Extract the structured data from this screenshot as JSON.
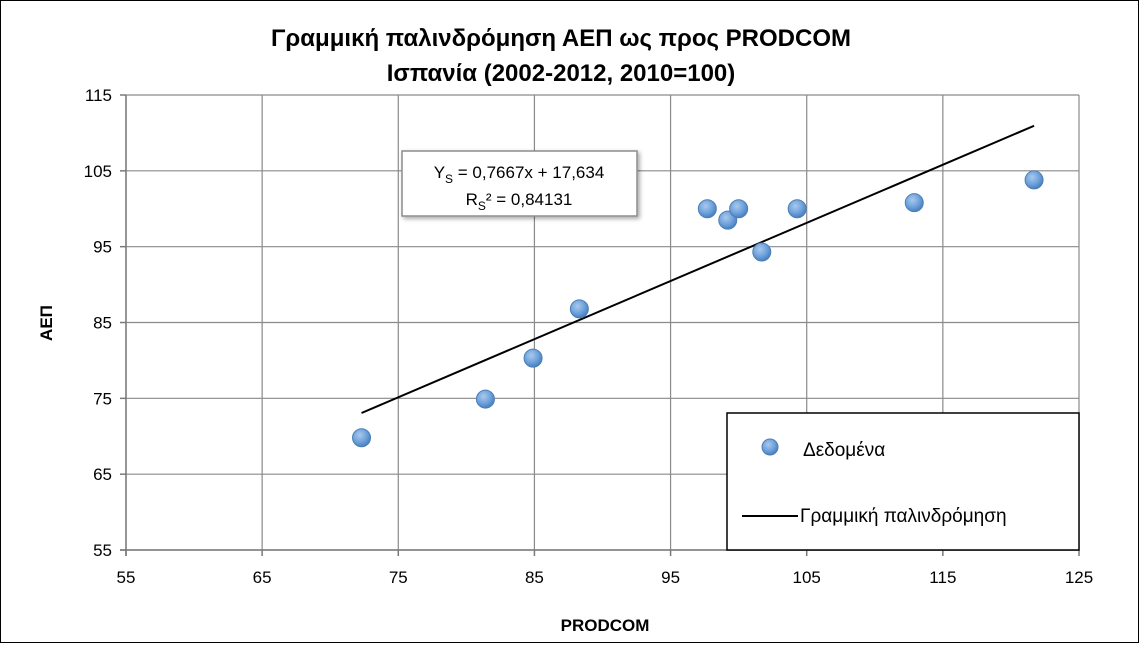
{
  "chart_data": {
    "type": "scatter",
    "title": "Γραμμική παλινδρόμηση ΑΕΠ ως προς PRODCOM",
    "subtitle": "Ισπανία (2002-2012, 2010=100)",
    "xlabel": "PRODCOM",
    "ylabel": "ΑΕΠ",
    "xlim": [
      55,
      125
    ],
    "ylim": [
      55,
      115
    ],
    "xticks": [
      55,
      65,
      75,
      85,
      95,
      105,
      115,
      125
    ],
    "yticks": [
      55,
      65,
      75,
      85,
      95,
      105,
      115
    ],
    "grid": true,
    "legend_position": "bottom-right",
    "series": [
      {
        "name": "Δεδομένα",
        "kind": "scatter",
        "color": "#5B9BD5",
        "points": [
          {
            "x": 72.3,
            "y": 69.8
          },
          {
            "x": 81.4,
            "y": 74.9
          },
          {
            "x": 84.9,
            "y": 80.3
          },
          {
            "x": 88.3,
            "y": 86.8
          },
          {
            "x": 97.7,
            "y": 100.0
          },
          {
            "x": 99.2,
            "y": 98.5
          },
          {
            "x": 100.0,
            "y": 100.0
          },
          {
            "x": 101.7,
            "y": 94.3
          },
          {
            "x": 104.3,
            "y": 100.0
          },
          {
            "x": 112.9,
            "y": 100.8
          },
          {
            "x": 121.7,
            "y": 103.8
          }
        ]
      },
      {
        "name": "Γραμμική παλινδρόμηση",
        "kind": "line",
        "color": "#000000",
        "slope": 0.7667,
        "intercept": 17.634,
        "x_range": [
          72.3,
          121.7
        ]
      }
    ],
    "annotation": {
      "equation_prefix": "Y",
      "equation_sub": "S",
      "equation_rest": " = 0,7667x + 17,634",
      "r2_prefix": "R",
      "r2_sub": "S",
      "r2_rest": "² = 0,84131"
    }
  }
}
